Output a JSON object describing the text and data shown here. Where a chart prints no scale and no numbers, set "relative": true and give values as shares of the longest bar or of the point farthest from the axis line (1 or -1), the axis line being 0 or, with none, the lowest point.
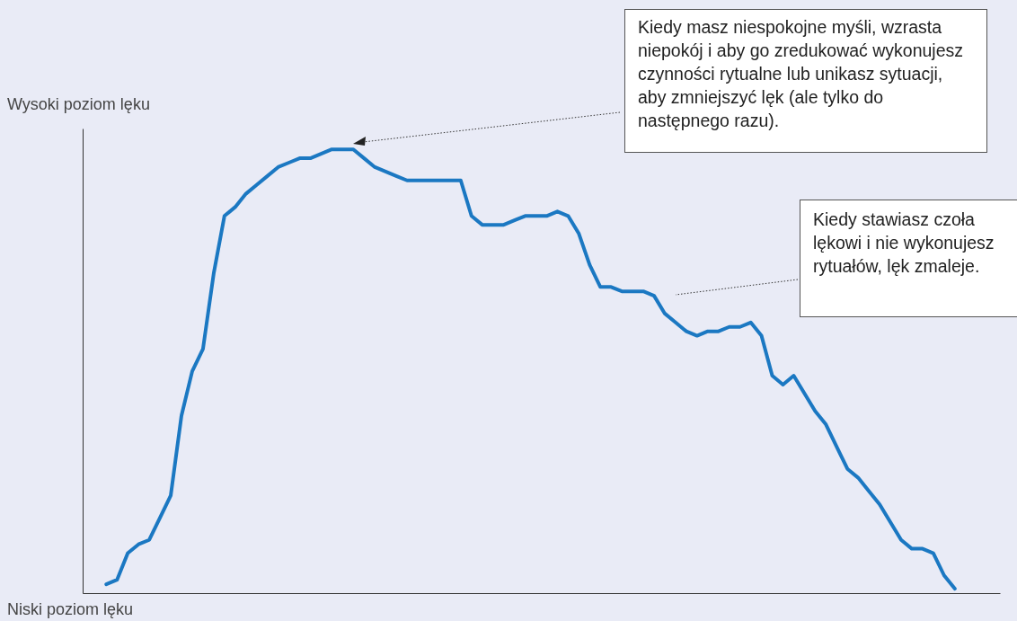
{
  "chart_data": {
    "type": "line",
    "relative": true,
    "ylabel": "Wysoki poziom lęku",
    "marker": "none",
    "line_style": "solid",
    "grid": false,
    "categories": [
      null,
      null,
      null,
      null,
      null,
      null,
      null,
      null,
      null,
      null,
      null,
      null,
      null,
      null,
      null,
      null,
      null,
      null,
      null,
      null,
      null,
      null,
      null,
      null,
      null,
      null,
      null,
      null,
      null,
      null,
      null,
      null,
      null,
      null,
      null,
      null,
      null,
      null,
      null,
      null,
      null,
      null,
      null,
      null,
      null,
      null,
      null,
      null,
      null,
      null,
      null,
      null,
      null,
      null,
      null,
      null,
      null,
      null,
      null,
      null,
      null,
      null,
      null,
      null,
      null,
      null,
      null,
      null,
      null,
      null,
      null,
      null,
      null,
      null,
      null,
      null,
      null,
      null,
      null,
      null
    ],
    "series": [
      {
        "color": "#1b78c2",
        "values": [
          0.02,
          0.03,
          0.09,
          0.11,
          0.12,
          0.17,
          0.22,
          0.4,
          0.5,
          0.55,
          0.72,
          0.85,
          0.87,
          0.9,
          0.92,
          0.94,
          0.96,
          0.97,
          0.98,
          0.98,
          0.99,
          1.0,
          1,
          1.0,
          0.98,
          0.96,
          0.95,
          0.94,
          0.93,
          0.93,
          0.93,
          0.93,
          0.93,
          0.93,
          0.85,
          0.83,
          0.83,
          0.83,
          0.84,
          0.85,
          0.85,
          0.85,
          0.86,
          0.85,
          0.81,
          0.74,
          0.69,
          0.69,
          0.68,
          0.68,
          0.68,
          0.67,
          0.63,
          0.61,
          0.59,
          0.58,
          0.59,
          0.59,
          0.6,
          0.6,
          0.61,
          0.58,
          0.49,
          0.47,
          0.49,
          0.45,
          0.41,
          0.38,
          0.33,
          0.28,
          0.26,
          0.23,
          0.2,
          0.16,
          0.12,
          0.1,
          0.1,
          0.09,
          0.04,
          0.01
        ]
      }
    ],
    "annotations": [
      "Kiedy masz niespokojne myśli, wzrasta niepokój i aby go zredukować wykonujesz czynności rytualne lub unikasz sytuacji, aby zmniejszyć lęk (ale tylko do następnego razu).",
      "Kiedy stawiasz czoła lękowi i nie wykonujesz rytuałów, lęk zmaleje.",
      "Niski poziom lęku"
    ]
  }
}
